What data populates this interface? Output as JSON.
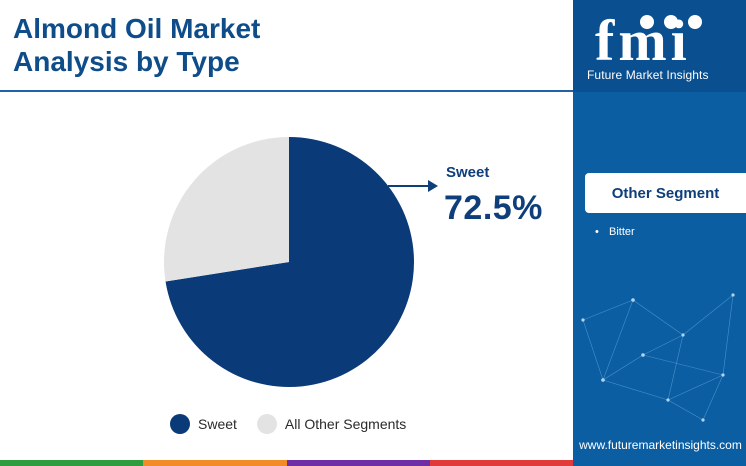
{
  "title": {
    "line1": "Almond Oil Market",
    "line2": "Analysis by Type"
  },
  "callout": {
    "label": "Sweet",
    "value": "72.5%"
  },
  "legend": [
    {
      "label": "Sweet",
      "color": "#0b3a78"
    },
    {
      "label": "All Other Segments",
      "color": "#e3e3e3"
    }
  ],
  "chart_data": {
    "type": "pie",
    "categories": [
      "Sweet",
      "All Other Segments"
    ],
    "values": [
      72.5,
      27.5
    ],
    "colors": [
      "#0b3a78",
      "#e3e3e3"
    ],
    "title": "Almond Oil Market Analysis by Type",
    "data_labels": [
      "72.5%"
    ],
    "legend_position": "bottom"
  },
  "brand": {
    "logo_text": "fmi",
    "tagline": "Future Market Insights",
    "website": "www.futuremarketinsights.com"
  },
  "other_segment": {
    "title": "Other Segment",
    "items": [
      "Bitter"
    ]
  },
  "colors": {
    "primary": "#0e4c8a",
    "panel": "#0c5ea3",
    "strip": [
      "#2f9c3f",
      "#f28c28",
      "#6e2fa6",
      "#e03a3a"
    ]
  }
}
